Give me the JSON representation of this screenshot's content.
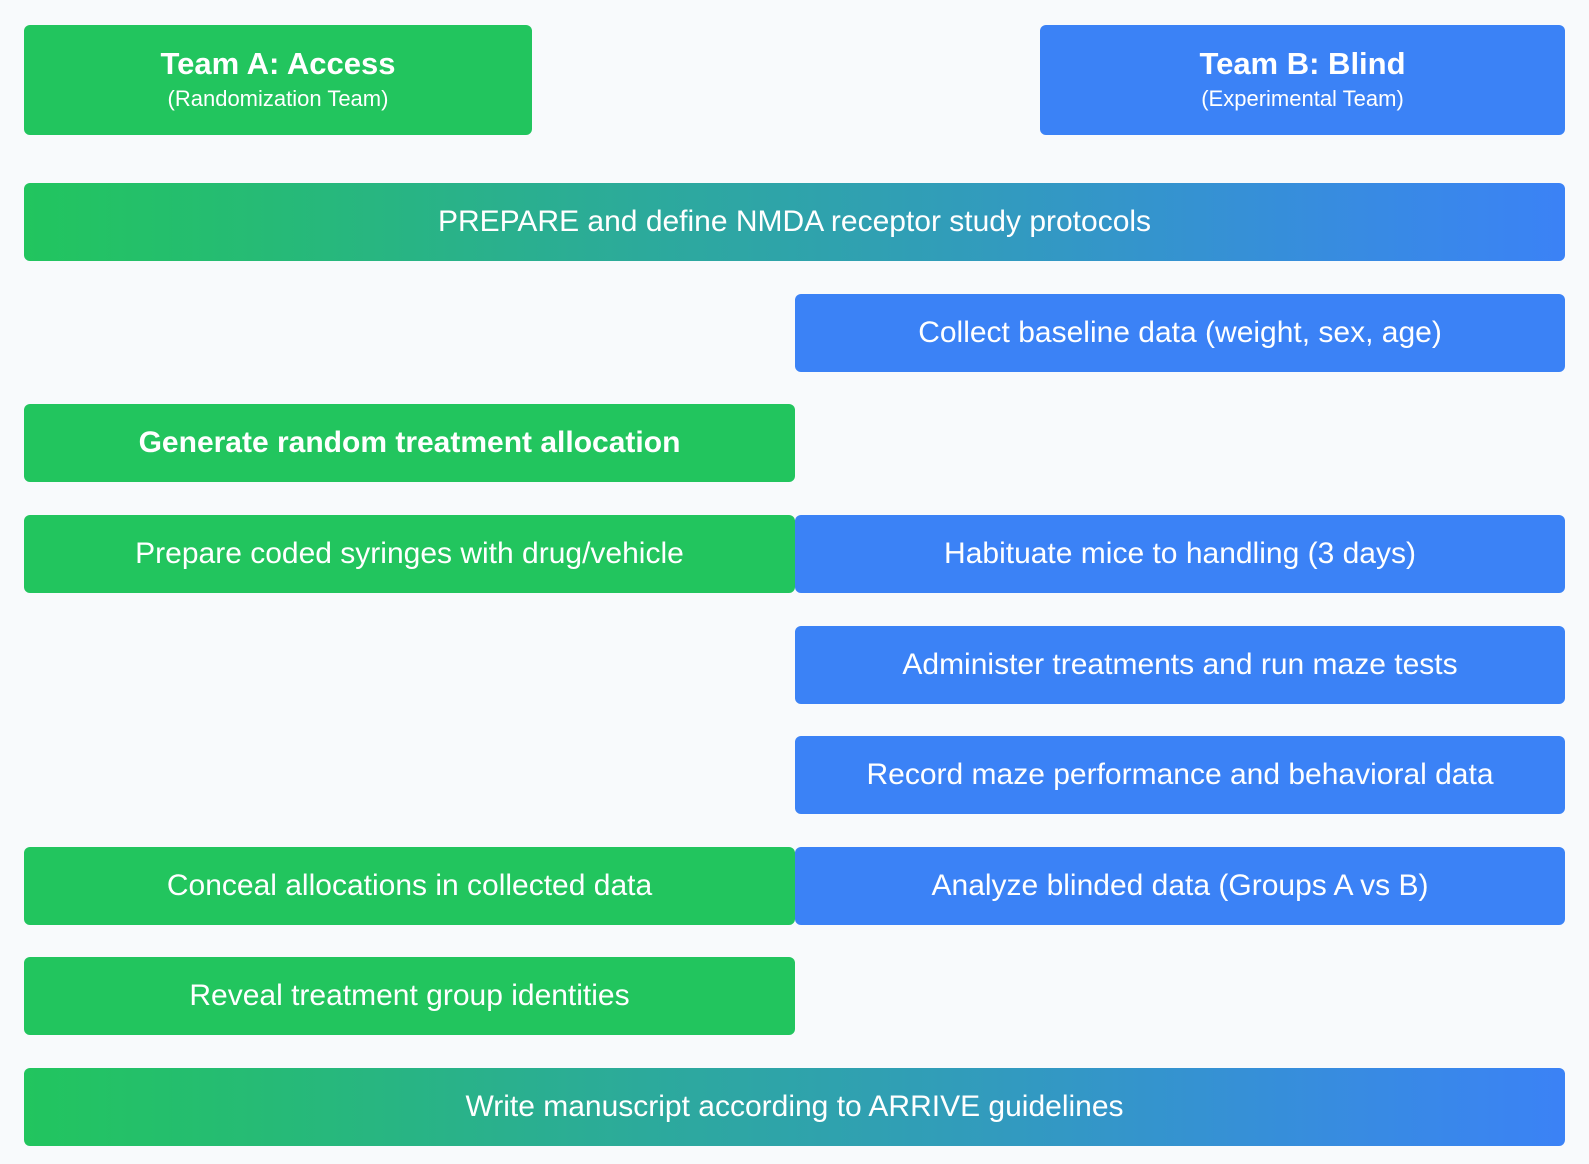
{
  "headers": {
    "team_a": {
      "title": "Team A: Access",
      "subtitle": "(Randomization Team)",
      "color": "#22c55e"
    },
    "team_b": {
      "title": "Team B: Blind",
      "subtitle": "(Experimental Team)",
      "color": "#3b82f6"
    }
  },
  "steps": {
    "prepare": "PREPARE and define NMDA receptor study protocols",
    "baseline": "Collect baseline data (weight, sex, age)",
    "generate": "Generate random treatment allocation",
    "syringes": "Prepare coded syringes with drug/vehicle",
    "habituate": "Habituate mice to handling (3 days)",
    "administer": "Administer treatments and run maze tests",
    "record": "Record maze performance and behavioral data",
    "conceal": "Conceal allocations in collected data",
    "analyze": "Analyze blinded data (Groups A vs B)",
    "reveal": "Reveal treatment group identities",
    "manuscript": "Write manuscript according to ARRIVE guidelines"
  }
}
